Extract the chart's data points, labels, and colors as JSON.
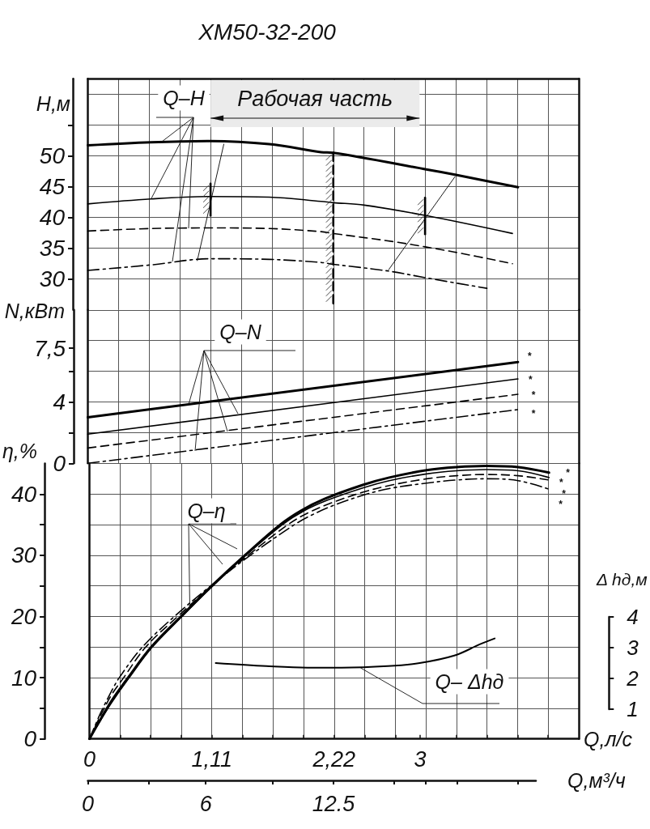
{
  "chart_data": [
    {
      "type": "line",
      "title": "ХМ50-32-200",
      "ylabel": "H,м",
      "xlim": [
        0,
        4.44
      ],
      "ylim": [
        25,
        62.5
      ],
      "yticks": [
        30,
        35,
        40,
        45,
        50,
        {
          "value": 55,
          "label": null
        }
      ],
      "grid": true,
      "tick_labels": "y",
      "annotations": [
        {
          "text": "Q–H",
          "x": 0.67,
          "y": 52.3
        }
      ],
      "bands": [
        {
          "axis": "x",
          "from": 1.11,
          "to": 3,
          "label": "Рабочая часть"
        }
      ],
      "series": [
        {
          "color": "#000000",
          "line_style": "solid",
          "x": [
            0,
            0.57,
            1.11,
            1.64,
            2.11,
            2.22,
            3.06,
            3.33,
            3.89
          ],
          "values": [
            51.7,
            52.2,
            52.4,
            51.9,
            50.6,
            50.5,
            47.8,
            46.9,
            44.9
          ]
        },
        {
          "color": "#000000",
          "line_style": "solid",
          "x": [
            0,
            0.57,
            1.11,
            1.64,
            2.11,
            2.22,
            2.5,
            3.06,
            3.84
          ],
          "values": [
            42.2,
            43.0,
            43.4,
            43.3,
            42.6,
            42.4,
            42.0,
            40.3,
            37.4
          ]
        },
        {
          "color": "#000000",
          "line_style": "dashed",
          "x": [
            0,
            0.57,
            1.11,
            1.64,
            2.11,
            2.22,
            2.79,
            3.31,
            3.84
          ],
          "values": [
            37.8,
            38.2,
            38.3,
            38.2,
            37.7,
            37.4,
            36.0,
            34.4,
            32.5
          ]
        },
        {
          "color": "#000000",
          "line_style": "dashdot",
          "x": [
            0,
            0.57,
            1.11,
            1.64,
            2.11,
            2.22,
            2.72,
            3.06,
            3.61
          ],
          "values": [
            31.4,
            32.3,
            33.3,
            33.2,
            32.7,
            32.4,
            31.3,
            30.2,
            28.5
          ]
        },
        {
          "color": "#000000",
          "line_style": "solid",
          "x": [
            1.11,
            1.11
          ],
          "values": [
            45.5,
            40.3
          ]
        },
        {
          "color": "#000000",
          "line_style": "dashed",
          "x": [
            2.22,
            2.22
          ],
          "values": [
            50.5,
            25.8
          ]
        },
        {
          "color": "#000000",
          "line_style": "solid",
          "x": [
            3.05,
            3.05
          ],
          "values": [
            43.2,
            37.3
          ]
        },
        {
          "color": "#000000",
          "line_style": "solid",
          "x": [
            0.99,
            1.23
          ],
          "values": [
            33.0,
            51.9
          ]
        },
        {
          "color": "#000000",
          "line_style": "solid",
          "x": [
            2.72,
            3.32
          ],
          "values": [
            31.5,
            46.6
          ]
        }
      ]
    },
    {
      "type": "line",
      "ylabel": "N,кВт",
      "xlim": [
        0,
        4.44
      ],
      "ylim": [
        0,
        10
      ],
      "yticks": [
        0,
        {
          "value": 2,
          "label": null
        },
        4,
        {
          "value": 6,
          "label": null
        },
        {
          "value": 7.5,
          "label": "7,5"
        }
      ],
      "grid": true,
      "tick_labels": "y",
      "annotations": [
        {
          "text": "Q–N",
          "x": 0.91,
          "y": 3.8
        },
        "*",
        "*",
        "*",
        "*"
      ],
      "series": [
        {
          "color": "#000000",
          "line_style": "solid",
          "x": [
            0,
            3.89
          ],
          "values": [
            3.0,
            6.6
          ]
        },
        {
          "color": "#000000",
          "line_style": "solid",
          "x": [
            0,
            3.89
          ],
          "values": [
            1.9,
            5.5
          ]
        },
        {
          "color": "#000000",
          "line_style": "dashed",
          "x": [
            0,
            3.89
          ],
          "values": [
            1.0,
            4.5
          ]
        },
        {
          "color": "#000000",
          "line_style": "dashdot",
          "x": [
            0,
            3.89
          ],
          "values": [
            0.0,
            3.5
          ]
        }
      ]
    },
    {
      "type": "line",
      "xlabel": "Q,л/с",
      "x2label": "Q,м³/ч",
      "ylabel": "η,%",
      "y2label": "Δ hд,м",
      "xlim": [
        0,
        4.44
      ],
      "xticks": [
        0,
        {
          "value": 0.2775,
          "label": null
        },
        {
          "value": 0.555,
          "label": null
        },
        {
          "value": 0.8325,
          "label": null
        },
        {
          "value": 1.11,
          "label": "1,11"
        },
        {
          "value": 1.3875,
          "label": null
        },
        {
          "value": 1.665,
          "label": null
        },
        {
          "value": 1.9425,
          "label": null
        },
        {
          "value": 2.22,
          "label": "2,22"
        },
        {
          "value": 2.4975,
          "label": null
        },
        {
          "value": 2.775,
          "label": null
        },
        3,
        {
          "value": 3.33,
          "label": null
        },
        {
          "value": 3.6075,
          "label": null
        },
        {
          "value": 3.885,
          "label": null
        },
        {
          "value": 4.1625,
          "label": null
        }
      ],
      "x2lim": [
        0,
        22.8
      ],
      "x2ticks": [
        0,
        {
          "value": 3.1,
          "label": null
        },
        6,
        {
          "value": 9.4,
          "label": null
        },
        12.5,
        {
          "value": 15.6,
          "label": null
        },
        {
          "value": 17.2,
          "label": null
        },
        {
          "value": 18.8,
          "label": null
        },
        {
          "value": 21.9,
          "label": null
        }
      ],
      "ylim": [
        0,
        45
      ],
      "yticks": [
        0,
        {
          "value": 5,
          "label": null
        },
        10,
        {
          "value": 15,
          "label": null
        },
        20,
        {
          "value": 25,
          "label": null
        },
        30,
        {
          "value": 35,
          "label": null
        },
        40
      ],
      "y2lim": [
        1,
        4
      ],
      "y2ticks": [
        1,
        2,
        3,
        4
      ],
      "grid": true,
      "annotations": [
        {
          "text": "Q–η",
          "x": 0.91,
          "y": 22
        },
        {
          "text": "Q– Δhд",
          "x": 2.46,
          "y": 11.6
        },
        "*",
        "*",
        "*",
        "*"
      ],
      "series": [
        {
          "color": "#000000",
          "line_style": "solid",
          "x": [
            0,
            0.1,
            0.2,
            0.35,
            0.56,
            0.83,
            1.11,
            1.41,
            1.73,
            1.92,
            2.13,
            2.48,
            2.72,
            3.06,
            3.33,
            3.6,
            3.89,
            4.17
          ],
          "values": [
            0,
            3.2,
            6.2,
            10,
            15,
            20,
            25,
            30,
            35,
            37.3,
            39.2,
            41.5,
            42.7,
            43.9,
            44.4,
            44.6,
            44.4,
            43.5
          ]
        },
        {
          "color": "#000000",
          "line_style": "solid",
          "x": [
            0,
            0.1,
            0.2,
            0.36,
            0.57,
            0.84,
            1.12,
            1.42,
            1.75,
            1.94,
            2.16,
            2.48,
            2.72,
            3.06,
            3.33,
            3.6,
            3.89,
            4.17
          ],
          "values": [
            0,
            3.0,
            5.9,
            10,
            15,
            20,
            25,
            30,
            35,
            37.2,
            39.0,
            41.0,
            42.2,
            43.3,
            43.8,
            44.0,
            43.8,
            42.7
          ]
        },
        {
          "color": "#000000",
          "line_style": "dashed",
          "x": [
            0,
            0.1,
            0.2,
            0.31,
            0.51,
            0.8,
            1.11,
            1.44,
            1.8,
            1.98,
            2.2,
            2.48,
            2.72,
            3.06,
            3.33,
            3.6,
            3.89,
            4.17
          ],
          "values": [
            0,
            3.8,
            7.2,
            10,
            15,
            20,
            25,
            30,
            35,
            36.9,
            38.6,
            40.3,
            41.4,
            42.5,
            43.0,
            43.2,
            43.0,
            42.3
          ]
        },
        {
          "color": "#000000",
          "line_style": "dashdot",
          "x": [
            0,
            0.1,
            0.2,
            0.27,
            0.48,
            0.77,
            1.1,
            1.46,
            1.86,
            2.02,
            2.22,
            2.48,
            2.72,
            3.06,
            3.33,
            3.6,
            3.89,
            4.17
          ],
          "values": [
            0,
            4.2,
            7.8,
            10,
            15,
            20,
            25,
            30,
            35,
            36.6,
            38.2,
            39.8,
            40.9,
            41.8,
            42.3,
            42.5,
            42.2,
            40.8
          ]
        },
        {
          "color": "#000000",
          "line_style": "solid",
          "axis": "y2",
          "x": [
            1.16,
            1.62,
            1.99,
            2.3,
            2.72,
            3.01,
            3.33,
            3.55,
            3.69
          ],
          "values": [
            2.5,
            2.4,
            2.35,
            2.35,
            2.4,
            2.5,
            2.75,
            3.1,
            3.3
          ]
        }
      ]
    }
  ]
}
